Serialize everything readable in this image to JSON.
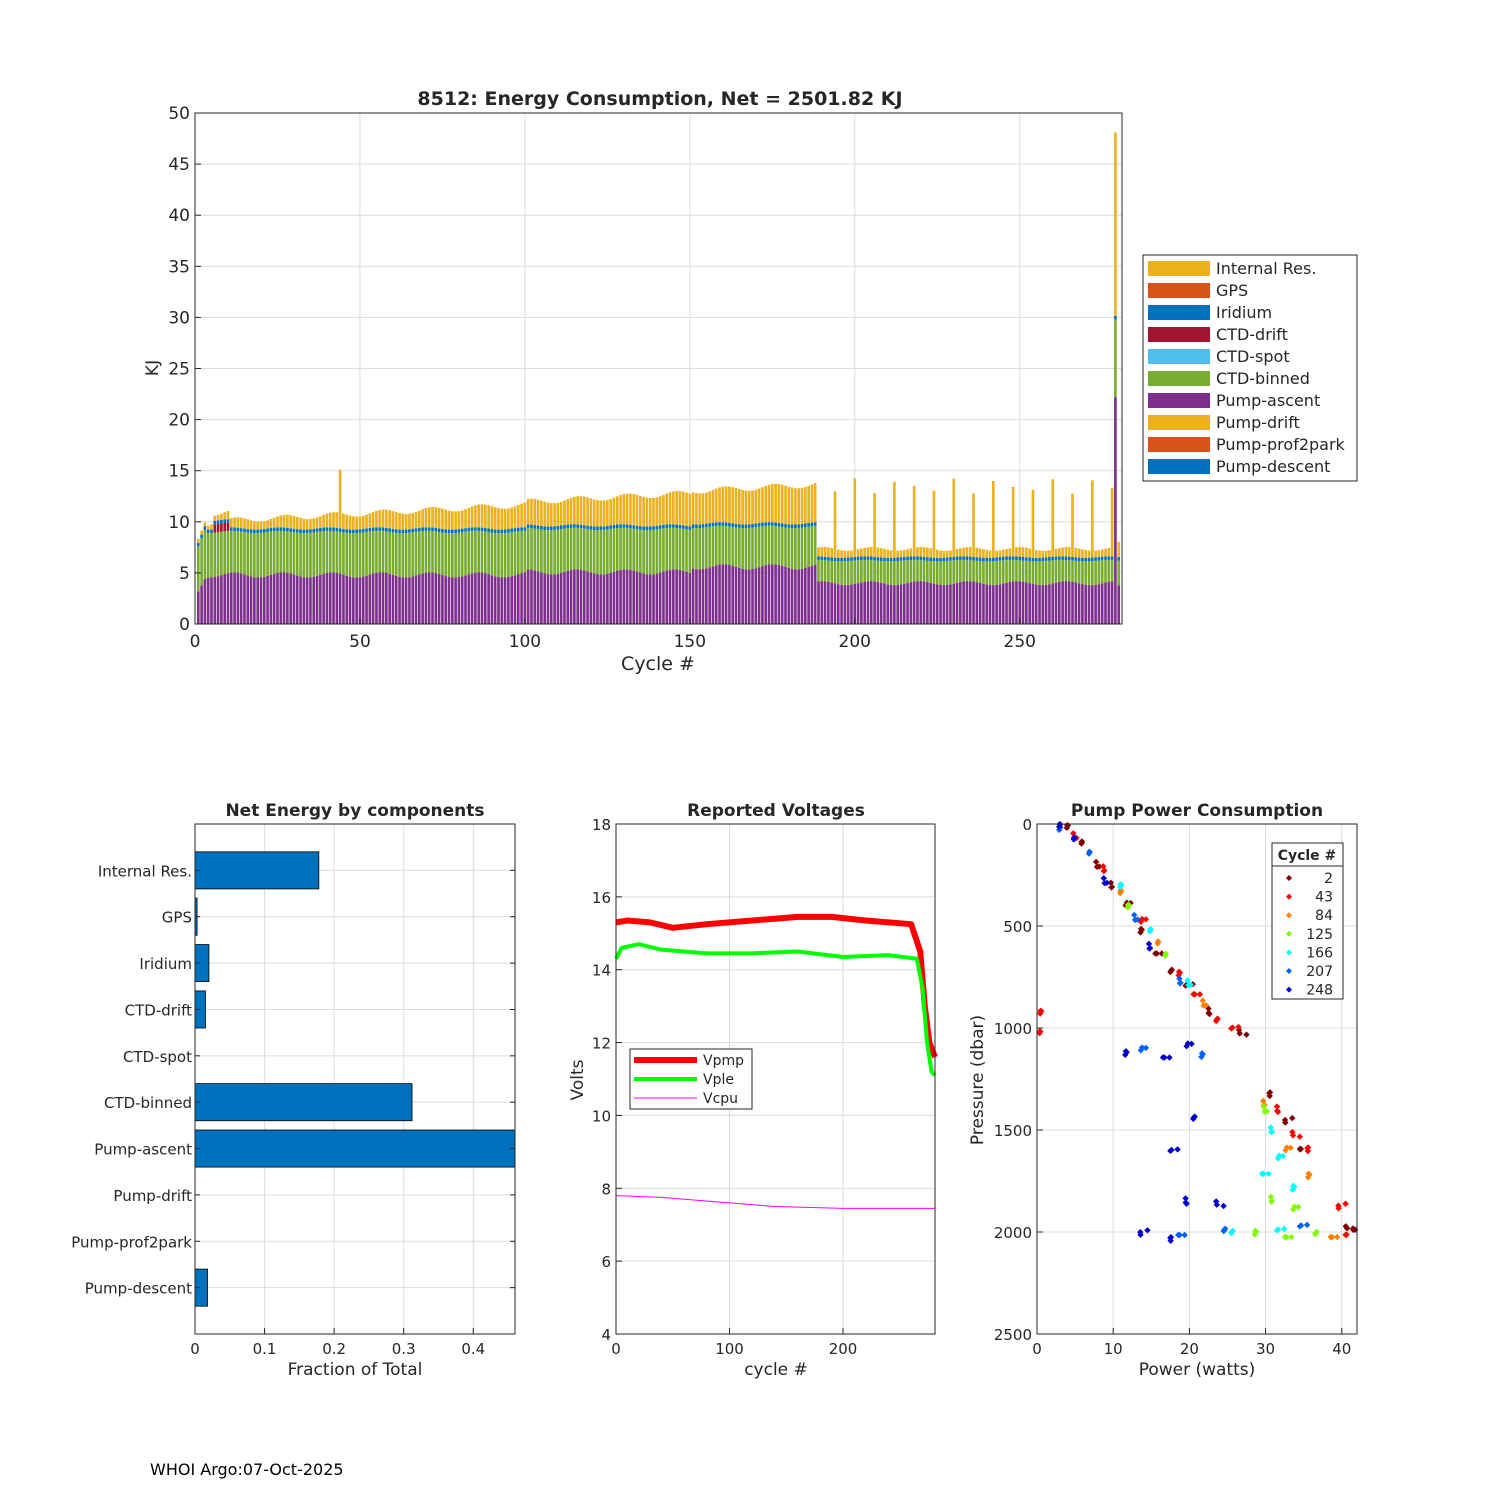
{
  "footer": "WHOI Argo:07-Oct-2025",
  "colors": {
    "internal_res": "#EDB120",
    "gps": "#D95319",
    "iridium": "#0072BD",
    "ctd_drift": "#A2142F",
    "ctd_spot": "#4DBEEE",
    "ctd_binned": "#77AC30",
    "pump_ascent": "#7E2F8E",
    "pump_drift": "#EDB120",
    "pump_prof2park": "#D95319",
    "pump_descent": "#0072BD",
    "hbar": "#0072BD",
    "vpmp": "#FF0000",
    "vple": "#00FF00",
    "vcpu": "#FF00FF"
  },
  "chart_data": [
    {
      "id": "energy",
      "type": "bar",
      "stacked": true,
      "title": "8512: Energy Consumption,  Net = 2501.82 KJ",
      "xlabel": "Cycle #",
      "ylabel": "KJ",
      "xlim": [
        0,
        281
      ],
      "ylim": [
        0,
        50
      ],
      "xticks": [
        0,
        50,
        100,
        150,
        200,
        250
      ],
      "yticks": [
        0,
        5,
        10,
        15,
        20,
        25,
        30,
        35,
        40,
        45,
        50
      ],
      "grid": true,
      "legend_position": "outside-right",
      "legend": [
        "Internal Res.",
        "GPS",
        "Iridium",
        "CTD-drift",
        "CTD-spot",
        "CTD-binned",
        "Pump-ascent",
        "Pump-drift",
        "Pump-prof2park",
        "Pump-descent"
      ],
      "segments": [
        {
          "name": "Pump-ascent",
          "x_range": [
            1,
            188
          ],
          "mean": 4.8,
          "start": 2.6
        },
        {
          "name": "Pump-ascent",
          "x_range": [
            189,
            280
          ],
          "mean": 4.0
        },
        {
          "name": "CTD-binned",
          "x_range": [
            1,
            188
          ],
          "mean": 4.2
        },
        {
          "name": "CTD-binned",
          "x_range": [
            189,
            280
          ],
          "mean": 2.0
        },
        {
          "name": "Iridium",
          "x_range": [
            1,
            280
          ],
          "mean": 0.35
        },
        {
          "name": "CTD-drift",
          "x_range": [
            6,
            10
          ],
          "mean": 0.8
        },
        {
          "name": "Internal Res.",
          "x_range": [
            1,
            280
          ],
          "mean": 0.6,
          "trend_to": 3.5
        }
      ],
      "highlights": [
        {
          "x": 44,
          "total": 15.1
        },
        {
          "x": 279,
          "total": 48.1,
          "pump_ascent": 22.2,
          "ctd_binned": 7.6
        }
      ],
      "tall_cycles": [
        {
          "from": 200,
          "to": 278,
          "every": 6,
          "total": 13.5
        }
      ]
    },
    {
      "id": "components",
      "type": "barh",
      "title": "Net Energy by components",
      "xlabel": "Fraction of Total",
      "xlim": [
        0,
        0.46
      ],
      "xticks": [
        0,
        0.1,
        0.2,
        0.3,
        0.4
      ],
      "categories": [
        "Internal Res.",
        "GPS",
        "Iridium",
        "CTD-drift",
        "CTD-spot",
        "CTD-binned",
        "Pump-ascent",
        "Pump-drift",
        "Pump-prof2park",
        "Pump-descent"
      ],
      "values": [
        0.178,
        0.003,
        0.02,
        0.015,
        0.0,
        0.312,
        0.47,
        0.0,
        0.0,
        0.018
      ]
    },
    {
      "id": "voltages",
      "type": "line",
      "title": "Reported Voltages",
      "xlabel": "cycle #",
      "ylabel": "Volts",
      "xlim": [
        0,
        281
      ],
      "ylim": [
        4,
        18
      ],
      "xticks": [
        0,
        100,
        200
      ],
      "yticks": [
        4,
        6,
        8,
        10,
        12,
        14,
        16,
        18
      ],
      "legend_position": "middle-left",
      "series": [
        {
          "name": "Vpmp",
          "x": [
            0,
            10,
            30,
            50,
            80,
            120,
            160,
            190,
            220,
            260,
            268,
            272,
            276,
            281
          ],
          "y": [
            15.3,
            15.35,
            15.3,
            15.15,
            15.25,
            15.35,
            15.45,
            15.45,
            15.35,
            15.25,
            14.5,
            13.0,
            12.0,
            11.6
          ]
        },
        {
          "name": "Vple",
          "x": [
            0,
            5,
            20,
            40,
            80,
            120,
            160,
            200,
            240,
            265,
            270,
            274,
            278,
            281
          ],
          "y": [
            14.3,
            14.6,
            14.7,
            14.55,
            14.45,
            14.45,
            14.5,
            14.35,
            14.4,
            14.3,
            13.5,
            12.0,
            11.2,
            11.1
          ]
        },
        {
          "name": "Vcpu",
          "x": [
            0,
            40,
            100,
            140,
            200,
            281
          ],
          "y": [
            7.8,
            7.75,
            7.6,
            7.5,
            7.45,
            7.45
          ]
        }
      ]
    },
    {
      "id": "pump_power",
      "type": "scatter",
      "title": "Pump Power Consumption",
      "xlabel": "Power (watts)",
      "ylabel": "Pressure (dbar)",
      "xlim": [
        0,
        42
      ],
      "ylim": [
        0,
        2500
      ],
      "y_reversed": true,
      "xticks": [
        0,
        10,
        20,
        30,
        40
      ],
      "yticks": [
        0,
        500,
        1000,
        1500,
        2000,
        2500
      ],
      "legend_title": "Cycle #",
      "legend_position": "top-right",
      "series": [
        {
          "name": "2",
          "color": "#800000",
          "points": [
            [
              4,
              10
            ],
            [
              6,
              100
            ],
            [
              8,
              200
            ],
            [
              10,
              300
            ],
            [
              12,
              400
            ],
            [
              14,
              520
            ],
            [
              16,
              620
            ],
            [
              18,
              720
            ],
            [
              20,
              800
            ],
            [
              23,
              920
            ],
            [
              27,
              1020
            ],
            [
              31,
              1330
            ],
            [
              33,
              1450
            ],
            [
              35,
              1580
            ],
            [
              41,
              1980
            ],
            [
              42,
              2000
            ]
          ]
        },
        {
          "name": "43",
          "color": "#FF0000",
          "points": [
            [
              0.5,
              920
            ],
            [
              0.5,
              1030
            ],
            [
              5,
              60
            ],
            [
              9,
              220
            ],
            [
              14,
              480
            ],
            [
              19,
              730
            ],
            [
              21,
              820
            ],
            [
              24,
              960
            ],
            [
              26,
              1010
            ],
            [
              32,
              1400
            ],
            [
              34,
              1520
            ],
            [
              36,
              1600
            ],
            [
              40,
              1870
            ],
            [
              41,
              2000
            ]
          ]
        },
        {
          "name": "84",
          "color": "#FF8000",
          "points": [
            [
              11,
              330
            ],
            [
              16,
              590
            ],
            [
              22,
              880
            ],
            [
              30,
              1370
            ],
            [
              33,
              1600
            ],
            [
              36,
              1720
            ],
            [
              39,
              2010
            ]
          ]
        },
        {
          "name": "125",
          "color": "#80FF00",
          "points": [
            [
              12,
              400
            ],
            [
              17,
              650
            ],
            [
              30,
              1400
            ],
            [
              31,
              1840
            ],
            [
              34,
              1890
            ],
            [
              29,
              2000
            ],
            [
              33,
              2010
            ],
            [
              37,
              2005
            ]
          ]
        },
        {
          "name": "166",
          "color": "#00FFFF",
          "points": [
            [
              11,
              300
            ],
            [
              15,
              530
            ],
            [
              20,
              780
            ],
            [
              31,
              1500
            ],
            [
              32,
              1640
            ],
            [
              34,
              1780
            ],
            [
              30,
              1700
            ],
            [
              26,
              2000
            ],
            [
              32,
              2000
            ]
          ]
        },
        {
          "name": "207",
          "color": "#0060FF",
          "points": [
            [
              3,
              20
            ],
            [
              7,
              150
            ],
            [
              13,
              460
            ],
            [
              19,
              770
            ],
            [
              14,
              1110
            ],
            [
              22,
              1130
            ],
            [
              19,
              2000
            ],
            [
              25,
              1990
            ],
            [
              35,
              1980
            ]
          ]
        },
        {
          "name": "248",
          "color": "#0000CC",
          "points": [
            [
              3,
              5
            ],
            [
              5,
              80
            ],
            [
              9,
              280
            ],
            [
              15,
              600
            ],
            [
              20,
              1090
            ],
            [
              12,
              1120
            ],
            [
              17,
              1130
            ],
            [
              21,
              1440
            ],
            [
              18,
              1610
            ],
            [
              20,
              1850
            ],
            [
              24,
              1860
            ],
            [
              18,
              2040
            ],
            [
              14,
              2000
            ]
          ]
        }
      ]
    }
  ]
}
